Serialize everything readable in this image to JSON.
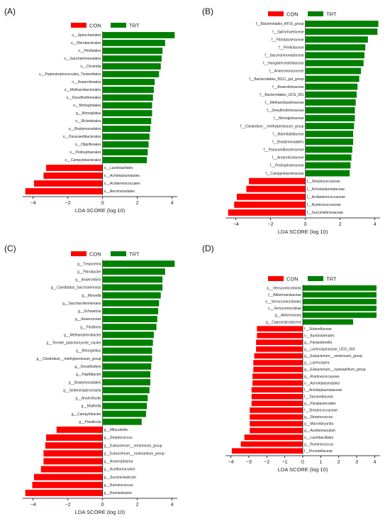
{
  "chart_data": [
    {
      "type": "bar",
      "panel": "(A)",
      "orientation": "horizontal",
      "xlabel": "LDA SCORE (log 10)",
      "xlim": [
        -4.6,
        4.3
      ],
      "xticks": [
        -4,
        -2,
        0,
        2,
        4
      ],
      "legend": [
        "CON",
        "TRT"
      ],
      "colors": {
        "CON": "#ff0000",
        "TRT": "#008000"
      },
      "features": [
        {
          "label": "o__Spirochaetales",
          "group": "TRT",
          "value": 4.15
        },
        {
          "label": "o__Fibrobacterales",
          "group": "TRT",
          "value": 3.6
        },
        {
          "label": "o__Pirellulales",
          "group": "TRT",
          "value": 3.45
        },
        {
          "label": "o__Saccharimonadales",
          "group": "TRT",
          "value": 3.4
        },
        {
          "label": "o__Clostridia",
          "group": "TRT",
          "value": 3.35
        },
        {
          "label": "o__Peptostreptococcales_Tissierellales",
          "group": "TRT",
          "value": 3.25
        },
        {
          "label": "o__Anaerolineales",
          "group": "TRT",
          "value": 3.0
        },
        {
          "label": "o__Methanobacteriales",
          "group": "TRT",
          "value": 2.95
        },
        {
          "label": "o__Desulfovibrionales",
          "group": "TRT",
          "value": 2.9
        },
        {
          "label": "o__Monoglobales",
          "group": "TRT",
          "value": 2.85
        },
        {
          "label": "g__Monoglobus",
          "group": "TRT",
          "value": 2.85
        },
        {
          "label": "o__Rickettsiales",
          "group": "TRT",
          "value": 2.8
        },
        {
          "label": "o__Bradymonadales",
          "group": "TRT",
          "value": 2.75
        },
        {
          "label": "o__Paracaedibacterales",
          "group": "TRT",
          "value": 2.7
        },
        {
          "label": "o__Oligoflexales",
          "group": "TRT",
          "value": 2.65
        },
        {
          "label": "o__Pedosphaerales",
          "group": "TRT",
          "value": 2.6
        },
        {
          "label": "o__Campylobacterales",
          "group": "TRT",
          "value": 2.55
        },
        {
          "label": "o__Lactobacillales",
          "group": "CON",
          "value": -3.25
        },
        {
          "label": "o__Acholeplasmatales",
          "group": "CON",
          "value": -3.4
        },
        {
          "label": "o__Acidaminococcales",
          "group": "CON",
          "value": -3.95
        },
        {
          "label": "o__Aeromonadales",
          "group": "CON",
          "value": -4.45
        }
      ]
    },
    {
      "type": "bar",
      "panel": "(B)",
      "orientation": "horizontal",
      "xlabel": "LDA SCORE (log 10)",
      "xlim": [
        -4.6,
        4.3
      ],
      "xticks": [
        -4,
        -2,
        0,
        2,
        4
      ],
      "legend": [
        "CON",
        "TRT"
      ],
      "colors": {
        "CON": "#ff0000",
        "TRT": "#008000"
      },
      "features": [
        {
          "label": "f__Bacteroidales_RF16_group",
          "group": "TRT",
          "value": 4.2
        },
        {
          "label": "f__Spirochaetaceae",
          "group": "TRT",
          "value": 4.15
        },
        {
          "label": "f__Fibrobacteraceae",
          "group": "TRT",
          "value": 3.6
        },
        {
          "label": "f__Pirellulaceae",
          "group": "TRT",
          "value": 3.45
        },
        {
          "label": "f__Saccharimonadaceae",
          "group": "TRT",
          "value": 3.4
        },
        {
          "label": "f__Hungateiclostridiaceae",
          "group": "TRT",
          "value": 3.35
        },
        {
          "label": "f__Anaerovoracaceae",
          "group": "TRT",
          "value": 3.2
        },
        {
          "label": "f__Bacteroidales_BS11_gut_group",
          "group": "TRT",
          "value": 3.1
        },
        {
          "label": "f__Anaerolineaceae",
          "group": "TRT",
          "value": 3.0
        },
        {
          "label": "f__Bacteroidales_UCG_001",
          "group": "TRT",
          "value": 2.95
        },
        {
          "label": "f__Methanobacteriaceae",
          "group": "TRT",
          "value": 2.9
        },
        {
          "label": "f__Desulfovibrionaceae",
          "group": "TRT",
          "value": 2.85
        },
        {
          "label": "f__Monoglobaceae",
          "group": "TRT",
          "value": 2.85
        },
        {
          "label": "f__Clostridium__methylpentosum_group",
          "group": "TRT",
          "value": 2.8
        },
        {
          "label": "f__Marinilabiliaceae",
          "group": "TRT",
          "value": 2.75
        },
        {
          "label": "f__Bradymonadales",
          "group": "TRT",
          "value": 2.75
        },
        {
          "label": "f__Paracaedibacteraceae",
          "group": "TRT",
          "value": 2.7
        },
        {
          "label": "f__Anaerofustaceae",
          "group": "TRT",
          "value": 2.65
        },
        {
          "label": "f__Pedosphaeraceae",
          "group": "TRT",
          "value": 2.6
        },
        {
          "label": "f__Campylobacteraceae",
          "group": "TRT",
          "value": 2.55
        },
        {
          "label": "f__Streptococcaceae",
          "group": "CON",
          "value": -3.25
        },
        {
          "label": "f__Acholeplasmataceae",
          "group": "CON",
          "value": -3.4
        },
        {
          "label": "f__Acidaminococcaceae",
          "group": "CON",
          "value": -3.95
        },
        {
          "label": "f__Ruminococcaceae",
          "group": "CON",
          "value": -4.1
        },
        {
          "label": "f__Succinivibrionaceae",
          "group": "CON",
          "value": -4.45
        }
      ]
    },
    {
      "type": "bar",
      "panel": "(C)",
      "orientation": "horizontal",
      "xlabel": "LDA SCORE (log 10)",
      "xlim": [
        -4.6,
        4.3
      ],
      "xticks": [
        -4,
        -2,
        0,
        2,
        4
      ],
      "legend": [
        "CON",
        "TRT"
      ],
      "colors": {
        "CON": "#ff0000",
        "TRT": "#008000"
      },
      "features": [
        {
          "label": "g__Treponema",
          "group": "TRT",
          "value": 4.15
        },
        {
          "label": "g__Fibrobacter",
          "group": "TRT",
          "value": 3.6
        },
        {
          "label": "g__Anaerovibrio",
          "group": "TRT",
          "value": 3.45
        },
        {
          "label": "g__Candidatus_Saccharimonas",
          "group": "TRT",
          "value": 3.45
        },
        {
          "label": "g__Moryella",
          "group": "TRT",
          "value": 3.35
        },
        {
          "label": "g__Saccharofermentans",
          "group": "TRT",
          "value": 3.25
        },
        {
          "label": "g__Schwartzia",
          "group": "TRT",
          "value": 3.2
        },
        {
          "label": "g__Anaerovorax",
          "group": "TRT",
          "value": 3.15
        },
        {
          "label": "g__Flexilinea",
          "group": "TRT",
          "value": 3.1
        },
        {
          "label": "g__Methanobrevibacter",
          "group": "TRT",
          "value": 2.95
        },
        {
          "label": "g__Termite_planctomycete_cluster",
          "group": "TRT",
          "value": 2.9
        },
        {
          "label": "g__Monoglobus",
          "group": "TRT",
          "value": 2.85
        },
        {
          "label": "g__Clostridium__methylpentosum_group",
          "group": "TRT",
          "value": 2.85
        },
        {
          "label": "g__Desulfovibrio",
          "group": "TRT",
          "value": 2.8
        },
        {
          "label": "g__Papillibacter",
          "group": "TRT",
          "value": 2.75
        },
        {
          "label": "g__Bradymonadales",
          "group": "TRT",
          "value": 2.75
        },
        {
          "label": "g__Sediminispirochaeta",
          "group": "TRT",
          "value": 2.7
        },
        {
          "label": "g__Anaerofustis",
          "group": "TRT",
          "value": 2.6
        },
        {
          "label": "g__Mailhella",
          "group": "TRT",
          "value": 2.55
        },
        {
          "label": "g__Campylobacter",
          "group": "TRT",
          "value": 2.5
        },
        {
          "label": "g__Paludicola",
          "group": "TRT",
          "value": 2.25
        },
        {
          "label": "g__Mitsuokella",
          "group": "CON",
          "value": -2.65
        },
        {
          "label": "g__Streptococcus",
          "group": "CON",
          "value": -3.25
        },
        {
          "label": "g__Eubacterium__ventriosum_group",
          "group": "CON",
          "value": -3.3
        },
        {
          "label": "g__Eubacterium__ruminantium_group",
          "group": "CON",
          "value": -3.4
        },
        {
          "label": "g__Anaeroplasma",
          "group": "CON",
          "value": -3.4
        },
        {
          "label": "g__Acetitomaculum",
          "group": "CON",
          "value": -3.55
        },
        {
          "label": "g__Succiniclasticum",
          "group": "CON",
          "value": -3.95
        },
        {
          "label": "g__Ruminococcus",
          "group": "CON",
          "value": -4.05
        },
        {
          "label": "g__Ruminobacter",
          "group": "CON",
          "value": -4.45
        }
      ]
    },
    {
      "type": "bar",
      "panel": "(D)",
      "orientation": "horizontal",
      "xlabel": "LDA SCORE (log 10)",
      "xlim": [
        -4.3,
        4.3
      ],
      "xticks": [
        -4,
        -3,
        -2,
        -1,
        0,
        1,
        2,
        3,
        4
      ],
      "legend": [
        "CON",
        "TRT"
      ],
      "colors": {
        "CON": "#ff0000",
        "TRT": "#008000"
      },
      "features": [
        {
          "label": "p__Verrucomicrobiota",
          "group": "TRT",
          "value": 4.1
        },
        {
          "label": "f__Akkermansiaceae",
          "group": "TRT",
          "value": 4.1
        },
        {
          "label": "o__Verrucomicrobiales",
          "group": "TRT",
          "value": 4.1
        },
        {
          "label": "c__Verrucomicrobiae",
          "group": "TRT",
          "value": 4.1
        },
        {
          "label": "g__Akkermansia",
          "group": "TRT",
          "value": 4.1
        },
        {
          "label": "g__Caproiciproducens",
          "group": "TRT",
          "value": 2.8
        },
        {
          "label": "f__Sutterellaceae",
          "group": "CON",
          "value": -2.55
        },
        {
          "label": "o__Burkholderiales",
          "group": "CON",
          "value": -2.55
        },
        {
          "label": "g__Parasutterella",
          "group": "CON",
          "value": -2.6
        },
        {
          "label": "g__Lachnospiraceae_UCG_003",
          "group": "CON",
          "value": -2.6
        },
        {
          "label": "g__Eubacterium__ventriosum_group",
          "group": "CON",
          "value": -2.7
        },
        {
          "label": "g__Lachnospira",
          "group": "CON",
          "value": -2.75
        },
        {
          "label": "g__Eubacterium__xylanophilum_group",
          "group": "CON",
          "value": -2.75
        },
        {
          "label": "g__Ruminococcaceae",
          "group": "CON",
          "value": -2.8
        },
        {
          "label": "o__Acholeplasmatales",
          "group": "CON",
          "value": -2.8
        },
        {
          "label": "f__Acholeplasmataceae",
          "group": "CON",
          "value": -2.85
        },
        {
          "label": "f__Tannerellaceae",
          "group": "CON",
          "value": -2.85
        },
        {
          "label": "g__Parabacteroides",
          "group": "CON",
          "value": -2.85
        },
        {
          "label": "f__Streptococcaceae",
          "group": "CON",
          "value": -2.95
        },
        {
          "label": "g__Streptococcus",
          "group": "CON",
          "value": -2.95
        },
        {
          "label": "g__Marvinbryantia",
          "group": "CON",
          "value": -2.95
        },
        {
          "label": "g__Acetitomaculum",
          "group": "CON",
          "value": -2.95
        },
        {
          "label": "o__Lactobacillales",
          "group": "CON",
          "value": -3.25
        },
        {
          "label": "g__Ruminococcus",
          "group": "CON",
          "value": -3.45
        },
        {
          "label": "f__Prevotellaceae",
          "group": "CON",
          "value": -3.95
        }
      ]
    }
  ]
}
